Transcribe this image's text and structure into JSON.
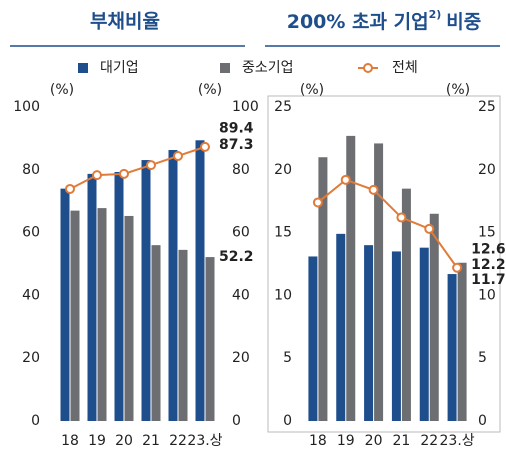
{
  "chart_data": [
    {
      "type": "bar",
      "title": "부채비율",
      "categories": [
        "18",
        "19",
        "20",
        "21",
        "22",
        "23.상"
      ],
      "ylabel": "(%)",
      "y2label": "(%)",
      "ylim": [
        0,
        100
      ],
      "yticks": [
        0,
        20,
        40,
        60,
        80,
        100
      ],
      "y2lim": [
        0,
        100
      ],
      "y2ticks": [
        0,
        20,
        40,
        60,
        80,
        100
      ],
      "frame": false,
      "series": [
        {
          "name": "대기업",
          "type": "bar",
          "color": "#1f4e8c",
          "values": [
            74,
            78.7,
            79.3,
            83.1,
            86.3,
            89.4
          ]
        },
        {
          "name": "중소기업",
          "type": "bar",
          "color": "#6d6e71",
          "values": [
            67,
            67.8,
            65.3,
            56,
            54.5,
            52.2
          ]
        },
        {
          "name": "전체",
          "type": "line",
          "color": "#e07b39",
          "values": [
            73.9,
            78.3,
            78.7,
            81.5,
            84.4,
            87.3
          ]
        }
      ]
    },
    {
      "type": "bar",
      "title": "200% 초과 기업",
      "title_superscript": "2)",
      "title_end": "비중",
      "categories": [
        "18",
        "19",
        "20",
        "21",
        "22",
        "23.상"
      ],
      "ylabel": "(%)",
      "y2label": "(%)",
      "ylim": [
        0,
        25
      ],
      "yticks": [
        0,
        5,
        10,
        15,
        20,
        25
      ],
      "y2lim": [
        0,
        25
      ],
      "y2ticks": [
        0,
        5,
        10,
        15,
        20,
        25
      ],
      "frame": true,
      "series": [
        {
          "name": "대기업",
          "type": "bar",
          "color": "#1f4e8c",
          "values": [
            13.1,
            14.9,
            14.0,
            13.5,
            13.8,
            11.7
          ]
        },
        {
          "name": "중소기업",
          "type": "bar",
          "color": "#6d6e71",
          "values": [
            21.0,
            22.7,
            22.1,
            18.5,
            16.5,
            12.6
          ]
        },
        {
          "name": "전체",
          "type": "line",
          "color": "#e07b39",
          "values": [
            17.4,
            19.2,
            18.4,
            16.2,
            15.3,
            12.2
          ]
        }
      ]
    }
  ]
}
